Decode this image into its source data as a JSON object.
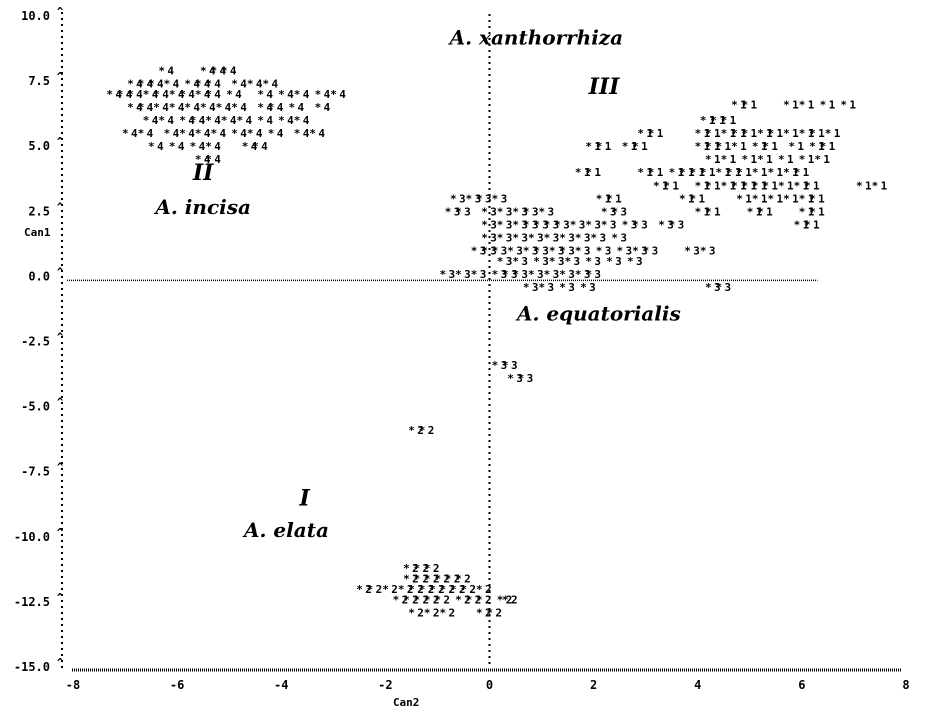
{
  "chart_data": {
    "type": "scatter",
    "xlabel": "Can2",
    "ylabel": "Can1",
    "xlim": [
      -8,
      8
    ],
    "ylim": [
      -15,
      10
    ],
    "xticks": [
      -8,
      -6,
      -4,
      -2,
      0,
      2,
      4,
      6,
      8
    ],
    "yticks": [
      "10.0",
      "7.5",
      "5.0",
      "2.5",
      "0.0",
      "-2.5",
      "-5.0",
      "-7.5",
      "-10.0",
      "-12.5",
      "-15.0"
    ],
    "grid": false,
    "annotations": [
      {
        "text": "A. xanthorrhiza",
        "x": 0.9,
        "y": 8.9,
        "size": 20
      },
      {
        "text": "III",
        "x": 2.2,
        "y": 7.0,
        "size": 22
      },
      {
        "text": "II",
        "x": -5.5,
        "y": 3.7,
        "size": 22
      },
      {
        "text": "A. incisa",
        "x": -5.5,
        "y": 2.4,
        "size": 20
      },
      {
        "text": "A. equatorialis",
        "x": 2.1,
        "y": -1.7,
        "size": 20
      },
      {
        "text": "I",
        "x": -3.55,
        "y": -8.8,
        "size": 22
      },
      {
        "text": "A. elata",
        "x": -3.9,
        "y": -10.0,
        "size": 20
      }
    ],
    "series": [
      {
        "name": "1",
        "points": [
          [
            4.8,
            6.6
          ],
          [
            5.0,
            6.6
          ],
          [
            5.8,
            6.6
          ],
          [
            6.1,
            6.6
          ],
          [
            6.5,
            6.6
          ],
          [
            6.9,
            6.6
          ],
          [
            4.2,
            6.0
          ],
          [
            4.4,
            6.0
          ],
          [
            4.6,
            6.0
          ],
          [
            3.0,
            5.5
          ],
          [
            3.2,
            5.5
          ],
          [
            4.1,
            5.5
          ],
          [
            4.3,
            5.5
          ],
          [
            4.6,
            5.5
          ],
          [
            4.8,
            5.5
          ],
          [
            5.0,
            5.5
          ],
          [
            5.3,
            5.5
          ],
          [
            5.5,
            5.5
          ],
          [
            5.8,
            5.5
          ],
          [
            6.1,
            5.5
          ],
          [
            6.3,
            5.5
          ],
          [
            6.6,
            5.5
          ],
          [
            2.0,
            5.0
          ],
          [
            2.2,
            5.0
          ],
          [
            2.7,
            5.0
          ],
          [
            2.9,
            5.0
          ],
          [
            4.1,
            5.0
          ],
          [
            4.3,
            5.0
          ],
          [
            4.5,
            5.0
          ],
          [
            4.8,
            5.0
          ],
          [
            5.2,
            5.0
          ],
          [
            5.4,
            5.0
          ],
          [
            5.9,
            5.0
          ],
          [
            6.3,
            5.0
          ],
          [
            6.5,
            5.0
          ],
          [
            4.3,
            4.5
          ],
          [
            4.6,
            4.5
          ],
          [
            5.0,
            4.5
          ],
          [
            5.3,
            4.5
          ],
          [
            5.7,
            4.5
          ],
          [
            6.1,
            4.5
          ],
          [
            6.4,
            4.5
          ],
          [
            1.8,
            4.0
          ],
          [
            2.0,
            4.0
          ],
          [
            3.0,
            4.0
          ],
          [
            3.2,
            4.0
          ],
          [
            3.6,
            4.0
          ],
          [
            3.8,
            4.0
          ],
          [
            4.0,
            4.0
          ],
          [
            4.2,
            4.0
          ],
          [
            4.5,
            4.0
          ],
          [
            4.7,
            4.0
          ],
          [
            4.9,
            4.0
          ],
          [
            5.2,
            4.0
          ],
          [
            5.5,
            4.0
          ],
          [
            5.8,
            4.0
          ],
          [
            6.0,
            4.0
          ],
          [
            3.3,
            3.5
          ],
          [
            3.5,
            3.5
          ],
          [
            4.1,
            3.5
          ],
          [
            4.3,
            3.5
          ],
          [
            4.6,
            3.5
          ],
          [
            4.8,
            3.5
          ],
          [
            5.0,
            3.5
          ],
          [
            5.2,
            3.5
          ],
          [
            5.4,
            3.5
          ],
          [
            5.7,
            3.5
          ],
          [
            6.0,
            3.5
          ],
          [
            6.2,
            3.5
          ],
          [
            7.2,
            3.5
          ],
          [
            7.5,
            3.5
          ],
          [
            2.2,
            3.0
          ],
          [
            2.4,
            3.0
          ],
          [
            3.8,
            3.0
          ],
          [
            4.0,
            3.0
          ],
          [
            4.9,
            3.0
          ],
          [
            5.2,
            3.0
          ],
          [
            5.5,
            3.0
          ],
          [
            5.8,
            3.0
          ],
          [
            6.1,
            3.0
          ],
          [
            6.3,
            3.0
          ],
          [
            4.1,
            2.5
          ],
          [
            4.3,
            2.5
          ],
          [
            5.1,
            2.5
          ],
          [
            5.3,
            2.5
          ],
          [
            6.1,
            2.5
          ],
          [
            6.3,
            2.5
          ],
          [
            6.0,
            2.0
          ],
          [
            6.2,
            2.0
          ]
        ]
      },
      {
        "name": "2",
        "points": [
          [
            -1.5,
            -11.2
          ],
          [
            -1.3,
            -11.2
          ],
          [
            -1.1,
            -11.2
          ],
          [
            -1.5,
            -11.6
          ],
          [
            -1.3,
            -11.6
          ],
          [
            -1.1,
            -11.6
          ],
          [
            -0.9,
            -11.6
          ],
          [
            -0.7,
            -11.6
          ],
          [
            -0.5,
            -11.6
          ],
          [
            -2.4,
            -12.0
          ],
          [
            -2.2,
            -12.0
          ],
          [
            -1.9,
            -12.0
          ],
          [
            -1.6,
            -12.0
          ],
          [
            -1.4,
            -12.0
          ],
          [
            -1.2,
            -12.0
          ],
          [
            -1.0,
            -12.0
          ],
          [
            -0.8,
            -12.0
          ],
          [
            -0.6,
            -12.0
          ],
          [
            -0.4,
            -12.0
          ],
          [
            -0.1,
            -12.0
          ],
          [
            -1.7,
            -12.4
          ],
          [
            -1.5,
            -12.4
          ],
          [
            -1.3,
            -12.4
          ],
          [
            -1.1,
            -12.4
          ],
          [
            -0.9,
            -12.4
          ],
          [
            -0.5,
            -12.4
          ],
          [
            -0.3,
            -12.4
          ],
          [
            -0.1,
            -12.4
          ],
          [
            0.3,
            -12.4
          ],
          [
            0.4,
            -12.4
          ],
          [
            -1.4,
            -12.9
          ],
          [
            -1.1,
            -12.9
          ],
          [
            -0.8,
            -12.9
          ],
          [
            -0.1,
            -12.9
          ],
          [
            0.1,
            -12.9
          ],
          [
            -1.4,
            -5.9
          ],
          [
            -1.2,
            -5.9
          ]
        ]
      },
      {
        "name": "3",
        "points": [
          [
            -0.6,
            3.0
          ],
          [
            -0.3,
            3.0
          ],
          [
            -0.1,
            3.0
          ],
          [
            0.2,
            3.0
          ],
          [
            -0.7,
            2.5
          ],
          [
            -0.5,
            2.5
          ],
          [
            0.0,
            2.5
          ],
          [
            0.3,
            2.5
          ],
          [
            0.6,
            2.5
          ],
          [
            0.8,
            2.5
          ],
          [
            1.1,
            2.5
          ],
          [
            2.3,
            2.5
          ],
          [
            2.5,
            2.5
          ],
          [
            0.0,
            2.0
          ],
          [
            0.3,
            2.0
          ],
          [
            0.6,
            2.0
          ],
          [
            0.8,
            2.0
          ],
          [
            1.0,
            2.0
          ],
          [
            1.2,
            2.0
          ],
          [
            1.4,
            2.0
          ],
          [
            1.7,
            2.0
          ],
          [
            2.0,
            2.0
          ],
          [
            2.3,
            2.0
          ],
          [
            2.7,
            2.0
          ],
          [
            2.9,
            2.0
          ],
          [
            3.4,
            2.0
          ],
          [
            3.6,
            2.0
          ],
          [
            0.0,
            1.5
          ],
          [
            0.3,
            1.5
          ],
          [
            0.6,
            1.5
          ],
          [
            0.9,
            1.5
          ],
          [
            1.2,
            1.5
          ],
          [
            1.5,
            1.5
          ],
          [
            1.8,
            1.5
          ],
          [
            2.1,
            1.5
          ],
          [
            2.5,
            1.5
          ],
          [
            -0.2,
            1.0
          ],
          [
            0.0,
            1.0
          ],
          [
            0.2,
            1.0
          ],
          [
            0.5,
            1.0
          ],
          [
            0.8,
            1.0
          ],
          [
            1.0,
            1.0
          ],
          [
            1.3,
            1.0
          ],
          [
            1.5,
            1.0
          ],
          [
            1.8,
            1.0
          ],
          [
            2.2,
            1.0
          ],
          [
            2.6,
            1.0
          ],
          [
            2.9,
            1.0
          ],
          [
            3.1,
            1.0
          ],
          [
            3.9,
            1.0
          ],
          [
            4.2,
            1.0
          ],
          [
            0.3,
            0.6
          ],
          [
            0.6,
            0.6
          ],
          [
            1.0,
            0.6
          ],
          [
            1.3,
            0.6
          ],
          [
            1.6,
            0.6
          ],
          [
            2.0,
            0.6
          ],
          [
            2.4,
            0.6
          ],
          [
            2.8,
            0.6
          ],
          [
            -0.8,
            0.1
          ],
          [
            -0.5,
            0.1
          ],
          [
            -0.2,
            0.1
          ],
          [
            0.2,
            0.1
          ],
          [
            0.4,
            0.1
          ],
          [
            0.6,
            0.1
          ],
          [
            0.9,
            0.1
          ],
          [
            1.2,
            0.1
          ],
          [
            1.5,
            0.1
          ],
          [
            1.8,
            0.1
          ],
          [
            2.0,
            0.1
          ],
          [
            0.8,
            -0.4
          ],
          [
            1.1,
            -0.4
          ],
          [
            1.5,
            -0.4
          ],
          [
            1.9,
            -0.4
          ],
          [
            4.3,
            -0.4
          ],
          [
            4.5,
            -0.4
          ],
          [
            0.2,
            -3.4
          ],
          [
            0.4,
            -3.4
          ],
          [
            0.5,
            -3.9
          ],
          [
            0.7,
            -3.9
          ]
        ]
      },
      {
        "name": "4",
        "points": [
          [
            -6.2,
            7.9
          ],
          [
            -5.4,
            7.9
          ],
          [
            -5.2,
            7.9
          ],
          [
            -5.0,
            7.9
          ],
          [
            -6.8,
            7.4
          ],
          [
            -6.6,
            7.4
          ],
          [
            -6.4,
            7.4
          ],
          [
            -6.1,
            7.4
          ],
          [
            -5.7,
            7.4
          ],
          [
            -5.5,
            7.4
          ],
          [
            -5.3,
            7.4
          ],
          [
            -4.8,
            7.4
          ],
          [
            -4.5,
            7.4
          ],
          [
            -4.2,
            7.4
          ],
          [
            -7.2,
            7.0
          ],
          [
            -7.0,
            7.0
          ],
          [
            -6.8,
            7.0
          ],
          [
            -6.5,
            7.0
          ],
          [
            -6.3,
            7.0
          ],
          [
            -6.0,
            7.0
          ],
          [
            -5.8,
            7.0
          ],
          [
            -5.5,
            7.0
          ],
          [
            -5.3,
            7.0
          ],
          [
            -4.9,
            7.0
          ],
          [
            -4.3,
            7.0
          ],
          [
            -3.9,
            7.0
          ],
          [
            -3.6,
            7.0
          ],
          [
            -3.2,
            7.0
          ],
          [
            -2.9,
            7.0
          ],
          [
            -6.8,
            6.5
          ],
          [
            -6.6,
            6.5
          ],
          [
            -6.3,
            6.5
          ],
          [
            -6.0,
            6.5
          ],
          [
            -5.7,
            6.5
          ],
          [
            -5.4,
            6.5
          ],
          [
            -5.1,
            6.5
          ],
          [
            -4.8,
            6.5
          ],
          [
            -4.3,
            6.5
          ],
          [
            -4.1,
            6.5
          ],
          [
            -3.7,
            6.5
          ],
          [
            -3.2,
            6.5
          ],
          [
            -6.5,
            6.0
          ],
          [
            -6.2,
            6.0
          ],
          [
            -5.8,
            6.0
          ],
          [
            -5.6,
            6.0
          ],
          [
            -5.3,
            6.0
          ],
          [
            -5.0,
            6.0
          ],
          [
            -4.7,
            6.0
          ],
          [
            -4.3,
            6.0
          ],
          [
            -3.9,
            6.0
          ],
          [
            -3.6,
            6.0
          ],
          [
            -6.9,
            5.5
          ],
          [
            -6.6,
            5.5
          ],
          [
            -6.1,
            5.5
          ],
          [
            -5.8,
            5.5
          ],
          [
            -5.5,
            5.5
          ],
          [
            -5.2,
            5.5
          ],
          [
            -4.8,
            5.5
          ],
          [
            -4.5,
            5.5
          ],
          [
            -4.1,
            5.5
          ],
          [
            -3.6,
            5.5
          ],
          [
            -3.3,
            5.5
          ],
          [
            -6.4,
            5.0
          ],
          [
            -6.0,
            5.0
          ],
          [
            -5.6,
            5.0
          ],
          [
            -5.3,
            5.0
          ],
          [
            -4.6,
            5.0
          ],
          [
            -4.4,
            5.0
          ],
          [
            -5.5,
            4.5
          ],
          [
            -5.3,
            4.5
          ]
        ]
      }
    ]
  }
}
